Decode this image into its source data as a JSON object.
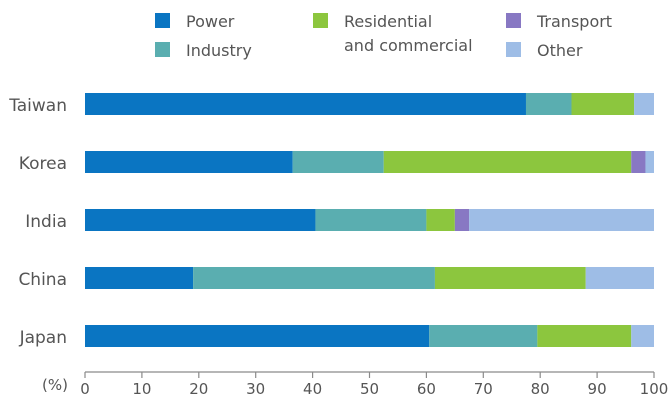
{
  "chart_data": {
    "type": "bar",
    "orientation": "horizontal",
    "stacked": true,
    "title": "",
    "xlabel": "",
    "ylabel": "",
    "unit_label": "(%)",
    "xlim": [
      0,
      100
    ],
    "x_ticks": [
      0,
      10,
      20,
      30,
      40,
      50,
      60,
      70,
      80,
      90,
      100
    ],
    "grid": false,
    "legend_position": "top",
    "categories": [
      "Taiwan",
      "Korea",
      "India",
      "China",
      "Japan"
    ],
    "series": [
      {
        "name": "Power",
        "color": "#0a75c2",
        "values": [
          77.5,
          36.5,
          40.5,
          19,
          60.5
        ]
      },
      {
        "name": "Industry",
        "color": "#5aaeb0",
        "values": [
          8,
          16,
          19.5,
          42.5,
          19
        ]
      },
      {
        "name": "Residential and commercial",
        "color": "#8cc63e",
        "values": [
          11,
          43.5,
          5,
          26.5,
          16.5
        ]
      },
      {
        "name": "Transport",
        "color": "#8878c3",
        "values": [
          0,
          2.5,
          2.5,
          0,
          0
        ]
      },
      {
        "name": "Other",
        "color": "#9ebde6",
        "values": [
          3.5,
          1.5,
          32.5,
          12,
          4
        ]
      }
    ],
    "legend": [
      {
        "lines": [
          "Power"
        ],
        "color": "#0a75c2"
      },
      {
        "lines": [
          "Industry"
        ],
        "color": "#5aaeb0"
      },
      {
        "lines": [
          "Residential",
          "and commercial"
        ],
        "color": "#8cc63e"
      },
      {
        "lines": [
          "Transport"
        ],
        "color": "#8878c3"
      },
      {
        "lines": [
          "Other"
        ],
        "color": "#9ebde6"
      }
    ]
  }
}
